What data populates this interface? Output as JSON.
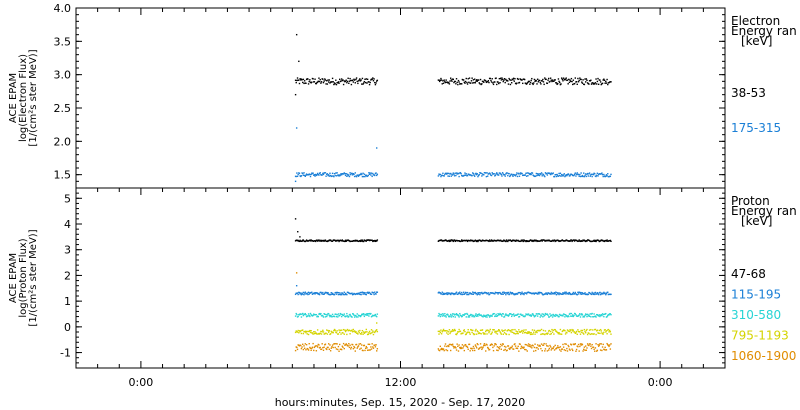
{
  "x_axis": {
    "ticks": [
      "0:00",
      "12:00",
      "0:00"
    ],
    "tick_hours": [
      0,
      24,
      48
    ],
    "range_hours": [
      -6,
      54
    ],
    "label": "hours:minutes, Sep. 15, 2020 - Sep. 17, 2020"
  },
  "chart_data": [
    {
      "type": "scatter",
      "panel": "electron",
      "ylabel_lines": [
        "ACE EPAM",
        "log(Electron Flux)",
        "[1/(cm²s ster MeV)]"
      ],
      "ylim": [
        1.3,
        4.0
      ],
      "yticks": [
        "1.5",
        "2.0",
        "2.5",
        "3.0",
        "3.5",
        "4.0"
      ],
      "ytick_values": [
        1.5,
        2.0,
        2.5,
        3.0,
        3.5,
        4.0
      ],
      "legend_title_lines": [
        "Electron",
        "Energy ran",
        "[keV]"
      ],
      "series": [
        {
          "name": "38-53",
          "color": "#000000",
          "level": 2.9,
          "noise": 0.05,
          "start": [
            [
              14.3,
              2.7
            ],
            [
              14.4,
              3.6
            ],
            [
              14.6,
              3.2
            ]
          ]
        },
        {
          "name": "175-315",
          "color": "#1a7fd6",
          "level": 1.5,
          "noise": 0.03,
          "start": [
            [
              14.3,
              1.4
            ],
            [
              14.4,
              2.2
            ]
          ],
          "end": [
            [
              21.8,
              1.9
            ]
          ]
        }
      ],
      "segments": [
        [
          14.3,
          21.9
        ],
        [
          27.5,
          43.5
        ]
      ]
    },
    {
      "type": "scatter",
      "panel": "proton",
      "ylabel_lines": [
        "ACE EPAM",
        "log(Proton Flux)",
        "[1/(cm²s ster MeV)]"
      ],
      "ylim": [
        -1.6,
        5.4
      ],
      "yticks": [
        "-1",
        "0",
        "1",
        "2",
        "3",
        "4",
        "5"
      ],
      "ytick_values": [
        -1,
        0,
        1,
        2,
        3,
        4,
        5
      ],
      "legend_title_lines": [
        "Proton",
        "Energy ran",
        "[keV]"
      ],
      "series": [
        {
          "name": "47-68",
          "color": "#000000",
          "level": 3.35,
          "noise": 0.03,
          "start": [
            [
              14.3,
              4.2
            ],
            [
              14.5,
              3.7
            ],
            [
              14.7,
              3.5
            ]
          ]
        },
        {
          "name": "115-195",
          "color": "#1a7fd6",
          "level": 1.3,
          "noise": 0.05,
          "start": [
            [
              14.4,
              1.6
            ]
          ]
        },
        {
          "name": "310-580",
          "color": "#26d4d4",
          "level": 0.45,
          "noise": 0.07
        },
        {
          "name": "795-1193",
          "color": "#d4d400",
          "level": -0.2,
          "noise": 0.1,
          "end": [
            [
              21.8,
              0.15
            ]
          ]
        },
        {
          "name": "1060-1900",
          "color": "#e08c00",
          "level": -0.8,
          "noise": 0.15,
          "start": [
            [
              14.4,
              2.1
            ]
          ]
        }
      ],
      "segments": [
        [
          14.3,
          21.9
        ],
        [
          27.5,
          43.5
        ]
      ]
    }
  ]
}
